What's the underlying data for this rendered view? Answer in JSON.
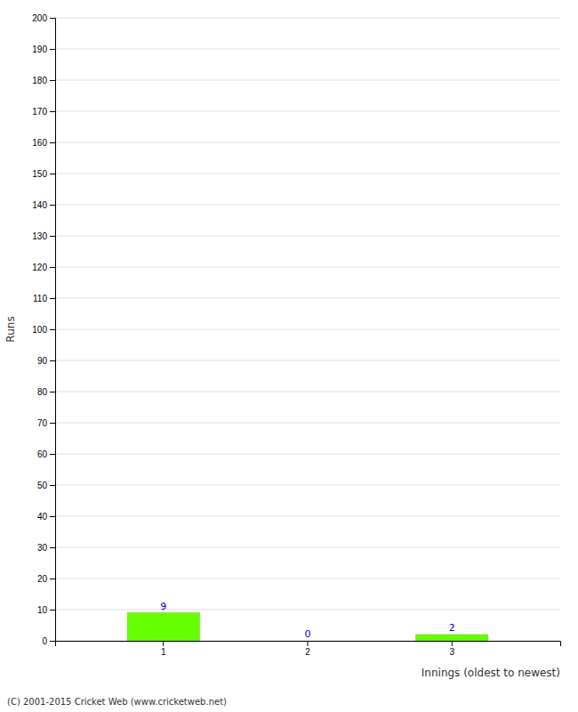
{
  "chart_data": {
    "type": "bar",
    "categories": [
      "1",
      "2",
      "3"
    ],
    "values": [
      9,
      0,
      2
    ],
    "color": "#66ff00",
    "data_labels": true,
    "ylabel": "Runs",
    "xlabel": "Innings (oldest to newest)",
    "ylim": [
      0,
      200
    ],
    "yticks": [
      0,
      10,
      20,
      30,
      40,
      50,
      60,
      70,
      80,
      90,
      100,
      110,
      120,
      130,
      140,
      150,
      160,
      170,
      180,
      190,
      200
    ],
    "grid": true,
    "footer": "(C) 2001-2015 Cricket Web (www.cricketweb.net)"
  }
}
